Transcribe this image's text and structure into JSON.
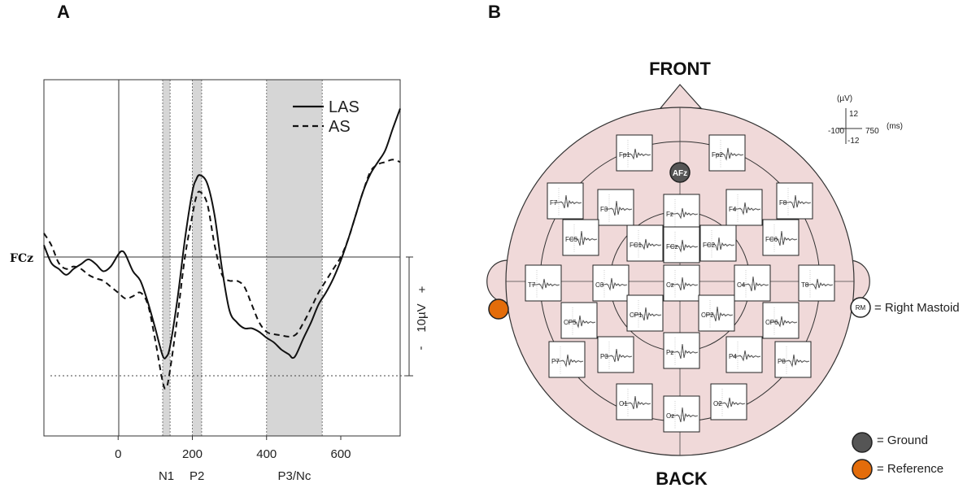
{
  "panel_a": {
    "letter": "A",
    "channel": "FCz",
    "scale_label": "10µV",
    "scale_plus": "+",
    "scale_minus": "-",
    "components": [
      "N1",
      "P2",
      "P3/Nc"
    ],
    "legend": [
      "LAS",
      "AS"
    ]
  },
  "chart_data": {
    "type": "line",
    "xlim": [
      -200,
      760
    ],
    "ylim": [
      -14,
      17
    ],
    "x_ticks": [
      0,
      200,
      400,
      600
    ],
    "grid": false,
    "legend_position": "top-right",
    "shaded_windows": [
      {
        "label": "N1",
        "start": 120,
        "end": 140
      },
      {
        "label": "P2",
        "start": 200,
        "end": 225
      },
      {
        "label": "P3/Nc",
        "start": 400,
        "end": 550
      }
    ],
    "scale_bar_uv": 10,
    "series": [
      {
        "name": "LAS",
        "style": "solid",
        "points": [
          [
            -200,
            1.0
          ],
          [
            -180,
            -0.5
          ],
          [
            -160,
            -1.0
          ],
          [
            -140,
            -1.5
          ],
          [
            -120,
            -1.0
          ],
          [
            -100,
            -0.6
          ],
          [
            -80,
            -0.2
          ],
          [
            -60,
            -0.6
          ],
          [
            -40,
            -1.2
          ],
          [
            -20,
            -0.8
          ],
          [
            0,
            0.2
          ],
          [
            10,
            0.5
          ],
          [
            20,
            0.2
          ],
          [
            40,
            -1.2
          ],
          [
            60,
            -2.0
          ],
          [
            80,
            -3.8
          ],
          [
            100,
            -6.0
          ],
          [
            120,
            -8.3
          ],
          [
            130,
            -8.4
          ],
          [
            140,
            -7.5
          ],
          [
            160,
            -3.5
          ],
          [
            180,
            1.5
          ],
          [
            200,
            5.5
          ],
          [
            210,
            6.5
          ],
          [
            220,
            6.9
          ],
          [
            240,
            6.2
          ],
          [
            260,
            3.5
          ],
          [
            280,
            -1.0
          ],
          [
            300,
            -4.5
          ],
          [
            320,
            -5.5
          ],
          [
            340,
            -6.0
          ],
          [
            360,
            -6.0
          ],
          [
            380,
            -6.3
          ],
          [
            400,
            -6.8
          ],
          [
            420,
            -7.2
          ],
          [
            440,
            -7.8
          ],
          [
            460,
            -8.2
          ],
          [
            470,
            -8.5
          ],
          [
            480,
            -8.2
          ],
          [
            500,
            -6.8
          ],
          [
            520,
            -5.5
          ],
          [
            540,
            -4.0
          ],
          [
            560,
            -3.0
          ],
          [
            580,
            -1.8
          ],
          [
            600,
            -0.3
          ],
          [
            620,
            1.5
          ],
          [
            640,
            3.5
          ],
          [
            660,
            5.5
          ],
          [
            680,
            7.0
          ],
          [
            700,
            8.0
          ],
          [
            720,
            9.0
          ],
          [
            740,
            10.8
          ],
          [
            760,
            12.5
          ]
        ]
      },
      {
        "name": "AS",
        "style": "dashed",
        "points": [
          [
            -200,
            2.0
          ],
          [
            -180,
            1.0
          ],
          [
            -160,
            -0.5
          ],
          [
            -140,
            -1.0
          ],
          [
            -120,
            -0.8
          ],
          [
            -100,
            -1.0
          ],
          [
            -80,
            -1.5
          ],
          [
            -60,
            -1.8
          ],
          [
            -40,
            -2.0
          ],
          [
            -20,
            -2.5
          ],
          [
            0,
            -3.0
          ],
          [
            20,
            -3.5
          ],
          [
            40,
            -3.3
          ],
          [
            60,
            -3.0
          ],
          [
            80,
            -4.0
          ],
          [
            100,
            -7.0
          ],
          [
            120,
            -10.5
          ],
          [
            130,
            -11.0
          ],
          [
            140,
            -9.5
          ],
          [
            160,
            -5.0
          ],
          [
            180,
            0.0
          ],
          [
            200,
            3.5
          ],
          [
            210,
            5.0
          ],
          [
            220,
            5.5
          ],
          [
            240,
            4.5
          ],
          [
            260,
            1.0
          ],
          [
            280,
            -1.5
          ],
          [
            300,
            -2.0
          ],
          [
            320,
            -2.0
          ],
          [
            340,
            -2.5
          ],
          [
            360,
            -4.0
          ],
          [
            380,
            -5.5
          ],
          [
            400,
            -6.3
          ],
          [
            420,
            -6.5
          ],
          [
            440,
            -6.6
          ],
          [
            460,
            -6.7
          ],
          [
            480,
            -6.5
          ],
          [
            500,
            -5.5
          ],
          [
            520,
            -4.3
          ],
          [
            540,
            -3.0
          ],
          [
            560,
            -2.0
          ],
          [
            580,
            -1.0
          ],
          [
            600,
            0.0
          ],
          [
            620,
            1.5
          ],
          [
            640,
            3.5
          ],
          [
            660,
            5.5
          ],
          [
            680,
            7.2
          ],
          [
            700,
            7.8
          ],
          [
            720,
            8.0
          ],
          [
            740,
            8.2
          ],
          [
            760,
            8.0
          ]
        ]
      }
    ]
  },
  "panel_b": {
    "letter": "B",
    "front_label": "FRONT",
    "back_label": "BACK",
    "scale_unit_y": "(µV)",
    "scale_top": "12",
    "scale_bottom": "-12",
    "scale_left": "-100",
    "scale_right": "750",
    "scale_unit_x": "(ms)",
    "ground_electrode": "AFz",
    "mastoid_badge": "RM",
    "mastoid_text": "= Right Mastoid",
    "ground_text": "= Ground",
    "reference_text": "= Reference",
    "colors": {
      "head_fill": "#f0d9d9",
      "ground": "#555555",
      "reference": "#e36c0a"
    },
    "electrodes": [
      "Fp1",
      "Fp2",
      "F7",
      "F3",
      "Fz",
      "F4",
      "F8",
      "FC5",
      "FC1",
      "FCz",
      "FC2",
      "FC6",
      "T7",
      "C3",
      "Cz",
      "C4",
      "T8",
      "CP5",
      "CP1",
      "CP2",
      "CP6",
      "P7",
      "P3",
      "Pz",
      "P4",
      "P8",
      "O1",
      "Oz",
      "O2"
    ]
  }
}
